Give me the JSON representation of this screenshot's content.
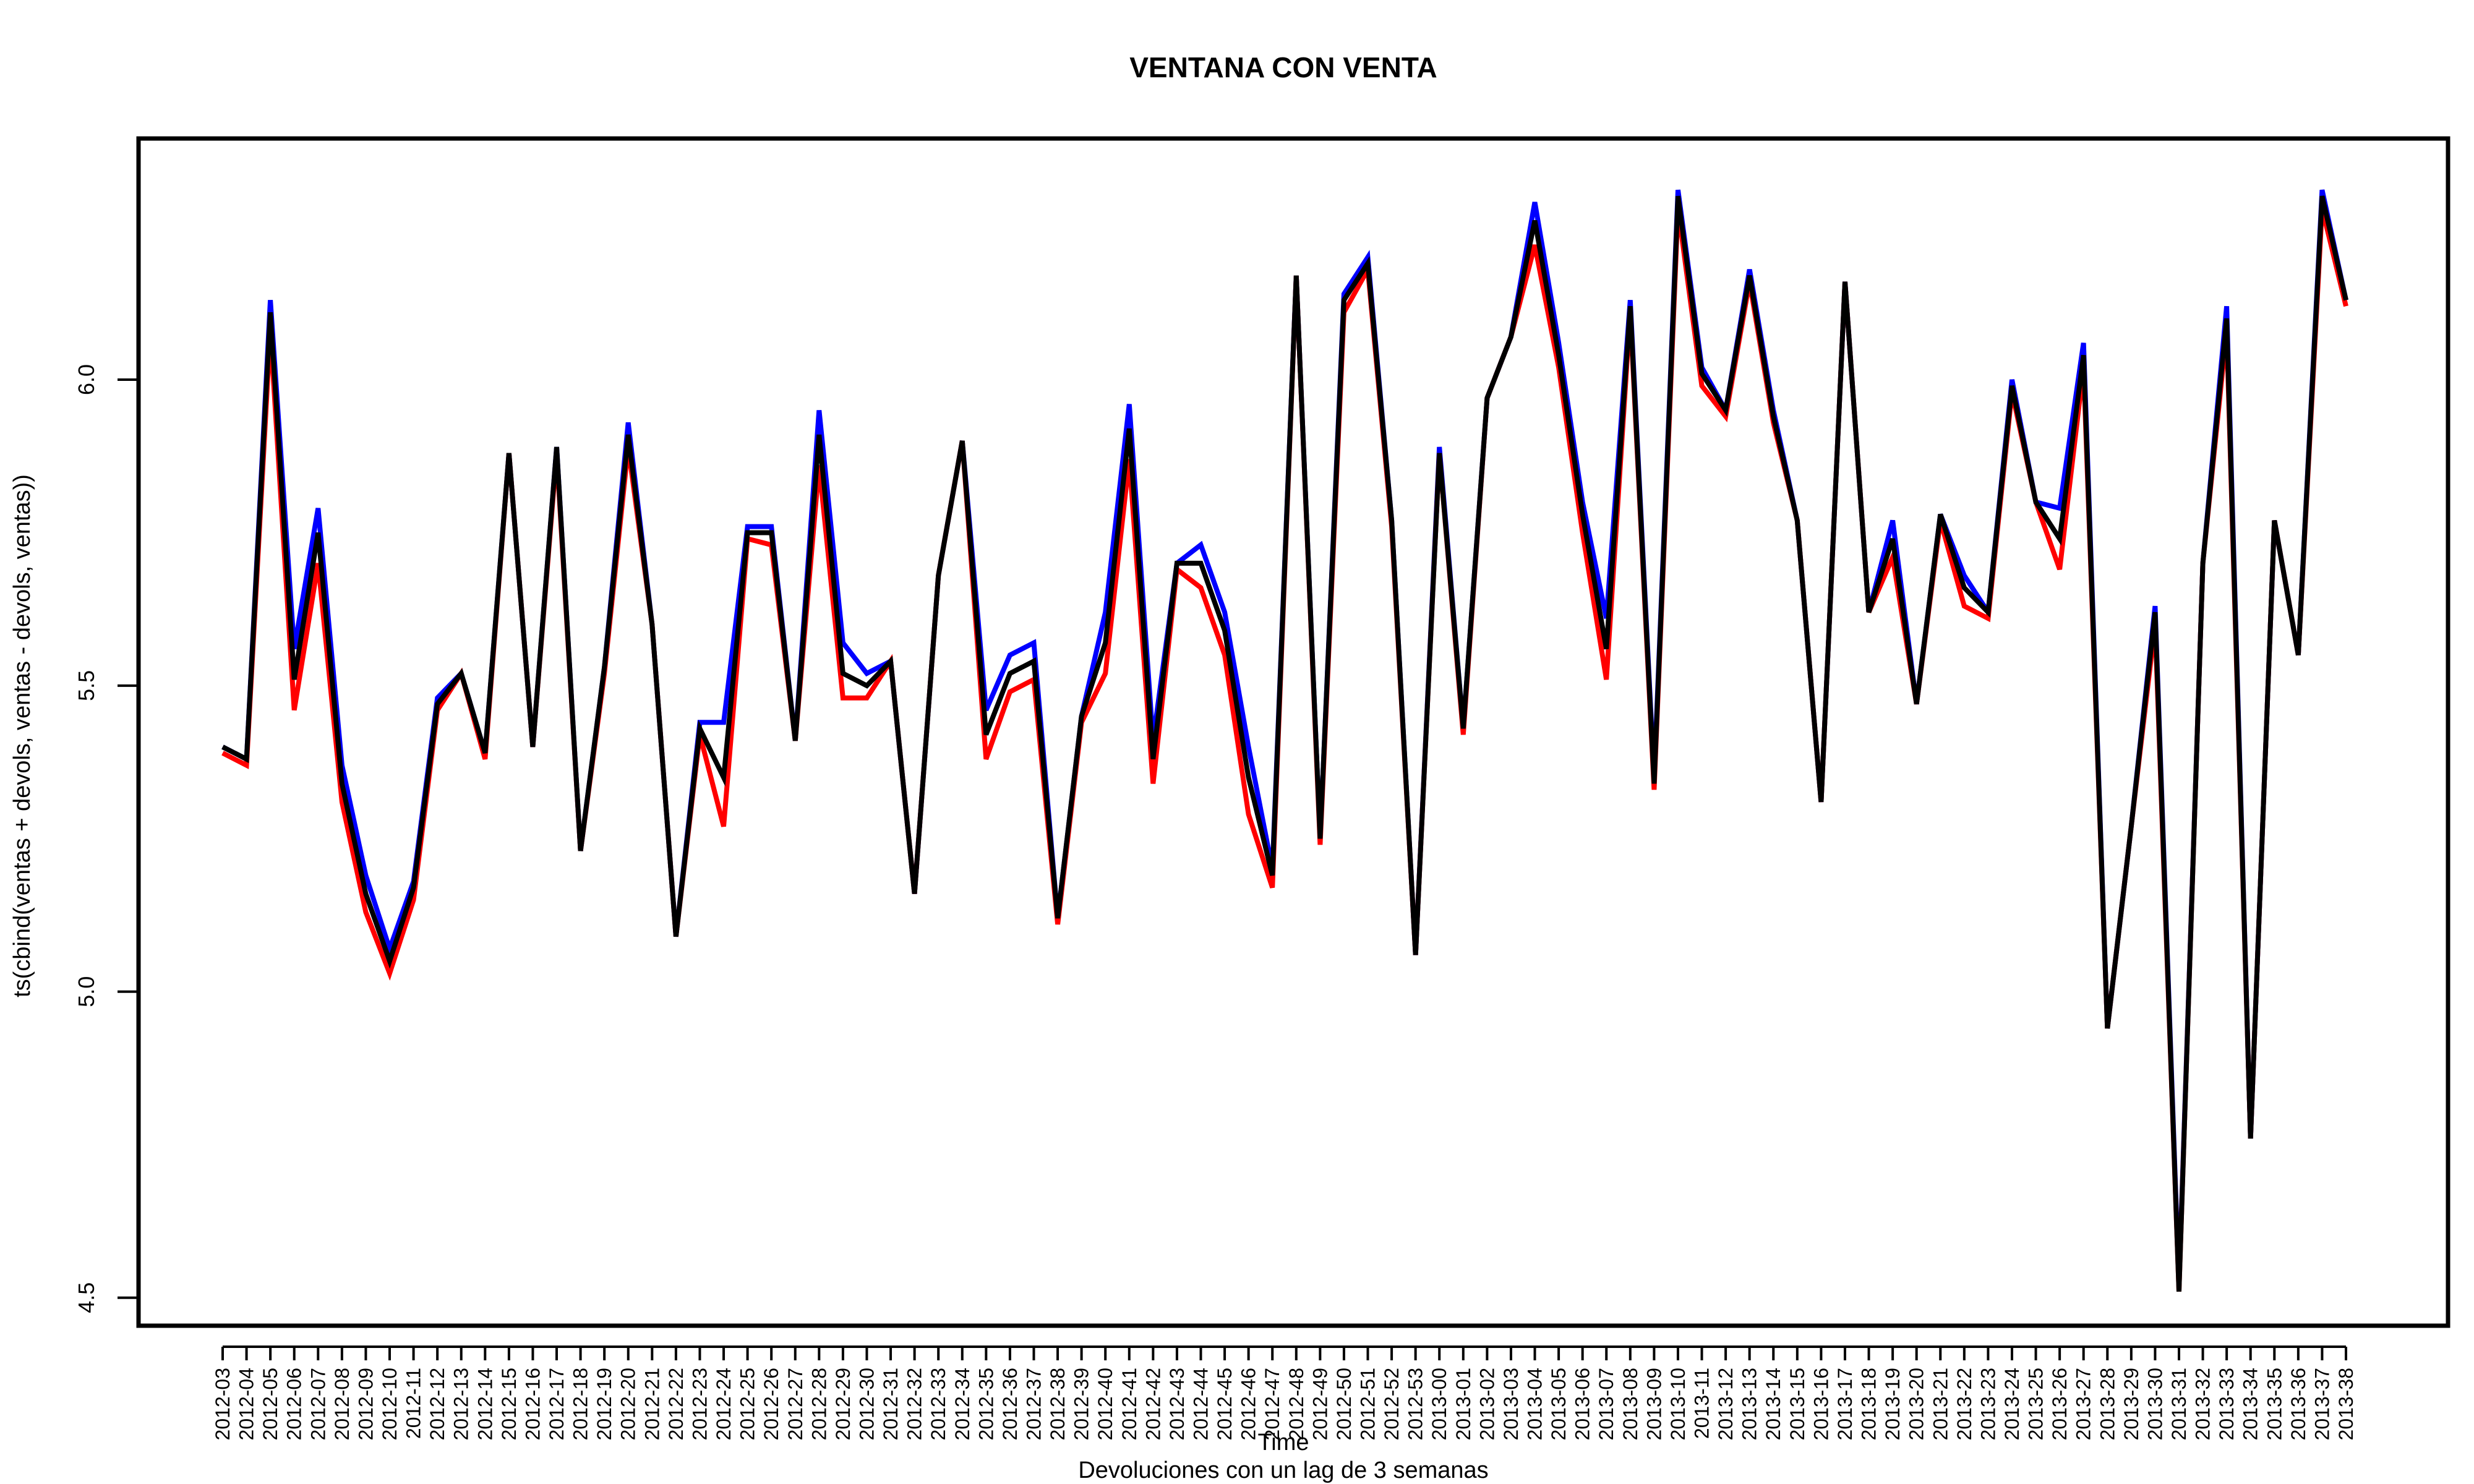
{
  "chart_data": {
    "type": "line",
    "title": "VENTANA CON VENTA",
    "xlabel": "Time",
    "ylabel": "ts(cbind(ventas + devols, ventas - devols, ventas))",
    "subtitle": "Devoluciones con un lag de 3 semanas",
    "ylim": [
      4.5,
      6.35
    ],
    "yticks": [
      "4.5",
      "5.0",
      "5.5",
      "6.0"
    ],
    "grid": false,
    "legend": "none",
    "categories": [
      "2012-03",
      "2012-04",
      "2012-05",
      "2012-06",
      "2012-07",
      "2012-08",
      "2012-09",
      "2012-10",
      "2012-11",
      "2012-12",
      "2012-13",
      "2012-14",
      "2012-15",
      "2012-16",
      "2012-17",
      "2012-18",
      "2012-19",
      "2012-20",
      "2012-21",
      "2012-22",
      "2012-23",
      "2012-24",
      "2012-25",
      "2012-26",
      "2012-27",
      "2012-28",
      "2012-29",
      "2012-30",
      "2012-31",
      "2012-32",
      "2012-33",
      "2012-34",
      "2012-35",
      "2012-36",
      "2012-37",
      "2012-38",
      "2012-39",
      "2012-40",
      "2012-41",
      "2012-42",
      "2012-43",
      "2012-44",
      "2012-45",
      "2012-46",
      "2012-47",
      "2012-48",
      "2012-49",
      "2012-50",
      "2012-51",
      "2012-52",
      "2012-53",
      "2013-00",
      "2013-01",
      "2013-02",
      "2013-03",
      "2013-04",
      "2013-05",
      "2013-06",
      "2013-07",
      "2013-08",
      "2013-09",
      "2013-10",
      "2013-11",
      "2013-12",
      "2013-13",
      "2013-14",
      "2013-15",
      "2013-16",
      "2013-17",
      "2013-18",
      "2013-19",
      "2013-20",
      "2013-21",
      "2013-22",
      "2013-23",
      "2013-24",
      "2013-25",
      "2013-26",
      "2013-27",
      "2013-28",
      "2013-29",
      "2013-30",
      "2013-31",
      "2013-32",
      "2013-33",
      "2013-34",
      "2013-35",
      "2013-36",
      "2013-37",
      "2013-38"
    ],
    "series": [
      {
        "color": "#0000ff",
        "values": [
          5.4,
          5.38,
          6.13,
          5.56,
          5.79,
          5.37,
          5.19,
          5.07,
          5.18,
          5.48,
          5.52,
          5.39,
          5.88,
          5.4,
          5.89,
          5.23,
          5.53,
          5.93,
          5.6,
          5.09,
          5.44,
          5.44,
          5.76,
          5.76,
          5.41,
          5.95,
          5.57,
          5.52,
          5.54,
          5.16,
          5.68,
          5.9,
          5.46,
          5.55,
          5.57,
          5.12,
          5.45,
          5.62,
          5.96,
          5.41,
          5.7,
          5.73,
          5.62,
          5.4,
          5.2,
          6.17,
          5.25,
          6.14,
          6.2,
          5.77,
          5.06,
          5.89,
          5.43,
          5.97,
          6.07,
          6.29,
          6.06,
          5.8,
          5.61,
          6.13,
          5.35,
          6.31,
          6.02,
          5.95,
          6.18,
          5.95,
          5.77,
          5.31,
          6.16,
          5.62,
          5.77,
          5.47,
          5.78,
          5.68,
          5.62,
          6.0,
          5.8,
          5.79,
          6.06,
          4.94,
          5.27,
          5.63,
          4.52,
          5.7,
          6.12,
          4.76,
          5.77,
          5.55,
          6.31,
          6.13
        ]
      },
      {
        "color": "#ff0000",
        "values": [
          5.39,
          5.37,
          6.08,
          5.46,
          5.7,
          5.31,
          5.13,
          5.03,
          5.15,
          5.46,
          5.52,
          5.38,
          5.88,
          5.4,
          5.88,
          5.23,
          5.52,
          5.89,
          5.6,
          5.09,
          5.42,
          5.27,
          5.74,
          5.73,
          5.41,
          5.86,
          5.48,
          5.48,
          5.54,
          5.16,
          5.68,
          5.9,
          5.38,
          5.49,
          5.51,
          5.11,
          5.44,
          5.52,
          5.87,
          5.34,
          5.69,
          5.66,
          5.55,
          5.29,
          5.17,
          6.17,
          5.24,
          6.11,
          6.18,
          5.76,
          5.06,
          5.88,
          5.42,
          5.97,
          6.07,
          6.22,
          6.02,
          5.75,
          5.51,
          6.11,
          5.33,
          6.28,
          5.99,
          5.94,
          6.16,
          5.93,
          5.77,
          5.31,
          6.16,
          5.62,
          5.71,
          5.47,
          5.77,
          5.63,
          5.61,
          5.98,
          5.8,
          5.69,
          6.02,
          4.94,
          5.27,
          5.6,
          4.51,
          5.7,
          6.08,
          4.76,
          5.77,
          5.55,
          6.28,
          6.12
        ]
      },
      {
        "color": "#000000",
        "values": [
          5.4,
          5.38,
          6.11,
          5.51,
          5.75,
          5.34,
          5.16,
          5.05,
          5.17,
          5.47,
          5.52,
          5.39,
          5.88,
          5.4,
          5.89,
          5.23,
          5.53,
          5.91,
          5.6,
          5.09,
          5.43,
          5.35,
          5.75,
          5.75,
          5.41,
          5.91,
          5.52,
          5.5,
          5.54,
          5.16,
          5.68,
          5.9,
          5.42,
          5.52,
          5.54,
          5.12,
          5.45,
          5.57,
          5.92,
          5.38,
          5.7,
          5.7,
          5.59,
          5.35,
          5.19,
          6.17,
          5.25,
          6.13,
          6.19,
          5.77,
          5.06,
          5.88,
          5.43,
          5.97,
          6.07,
          6.26,
          6.04,
          5.78,
          5.56,
          6.12,
          5.34,
          6.3,
          6.01,
          5.95,
          6.17,
          5.94,
          5.77,
          5.31,
          6.16,
          5.62,
          5.74,
          5.47,
          5.78,
          5.66,
          5.62,
          5.99,
          5.8,
          5.74,
          6.04,
          4.94,
          5.27,
          5.62,
          4.51,
          5.7,
          6.1,
          4.76,
          5.77,
          5.55,
          6.3,
          6.13
        ]
      }
    ]
  }
}
